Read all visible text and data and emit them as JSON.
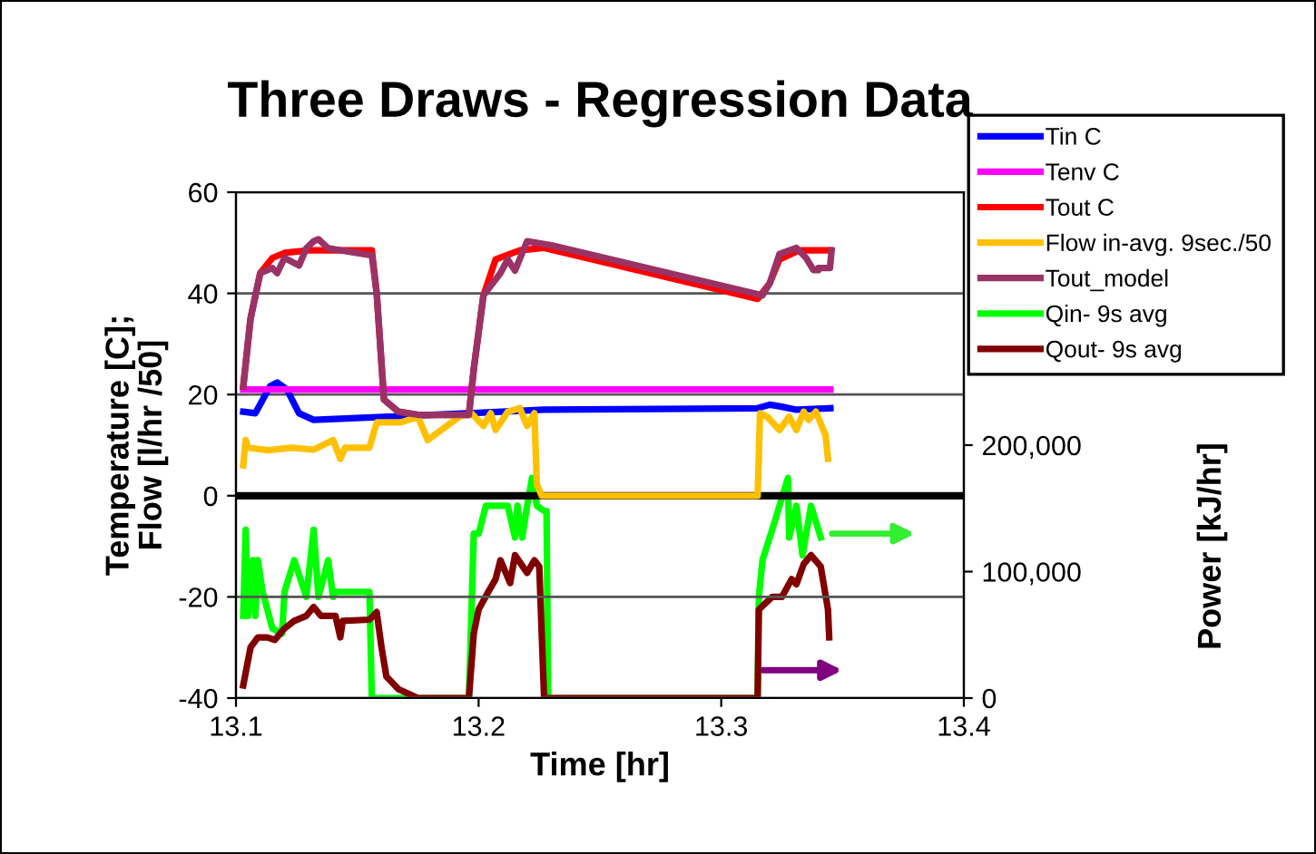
{
  "chart_data": {
    "type": "line",
    "title": "Three Draws - Regression Data",
    "xlabel": "Time [hr]",
    "ylabel": "Temperature [C];\nFlow [l/hr /50]",
    "y2label": "Power [kJ/hr]",
    "xlim": [
      13.1,
      13.4
    ],
    "xticks": [
      13.1,
      13.2,
      13.3,
      13.4
    ],
    "ylim": [
      -40,
      60
    ],
    "yticks": [
      -40,
      -20,
      0,
      20,
      40,
      60
    ],
    "y2lim": [
      0,
      400000
    ],
    "y2ticks": [
      0,
      {
        "value": 100000,
        "label": "100,000"
      },
      {
        "value": 200000,
        "label": "200,000"
      }
    ],
    "grid": "y",
    "legend": "top right",
    "marker": "none",
    "line_style": "solid",
    "ref_lines": [
      {
        "axis": "y",
        "value": 0,
        "color": "#000000"
      }
    ],
    "series": [
      {
        "name": "Tin C",
        "color": "#0000ff",
        "x": [
          13.103,
          13.108,
          13.114,
          13.117,
          13.121,
          13.126,
          13.132,
          13.196,
          13.227,
          13.315,
          13.32,
          13.325,
          13.331,
          13.345
        ],
        "values": [
          16.6,
          16.3,
          21.6,
          22.4,
          21,
          16.3,
          15,
          16.3,
          17,
          17.3,
          18,
          17.6,
          17,
          17.3
        ]
      },
      {
        "name": "Tenv C",
        "color": "#ff00ff",
        "x": [
          13.103,
          13.345
        ],
        "values": [
          21,
          21
        ]
      },
      {
        "name": "Tout C",
        "color": "#ff0000",
        "x": [
          13.103,
          13.106,
          13.11,
          13.115,
          13.12,
          13.13,
          13.156,
          13.158,
          13.161,
          13.167,
          13.175,
          13.196,
          13.198,
          13.202,
          13.207,
          13.217,
          13.227,
          13.315,
          13.32,
          13.324,
          13.332,
          13.345
        ],
        "values": [
          21.6,
          35,
          44,
          47,
          48,
          48.5,
          48.5,
          40,
          19,
          16.6,
          16,
          16,
          25,
          39.6,
          46.7,
          48.5,
          49,
          38.9,
          42,
          46.7,
          48.5,
          48.5
        ]
      },
      {
        "name": "Flow in-avg. 9sec./50",
        "color": "#ffc000",
        "x": [
          13.103,
          13.104,
          13.105,
          13.113,
          13.123,
          13.132,
          13.14,
          13.143,
          13.145,
          13.155,
          13.158,
          13.168,
          13.175,
          13.179,
          13.192,
          13.197,
          13.202,
          13.205,
          13.207,
          13.212,
          13.217,
          13.22,
          13.223,
          13.224,
          13.226,
          13.227,
          13.315,
          13.316,
          13.319,
          13.324,
          13.328,
          13.331,
          13.334,
          13.336,
          13.339,
          13.343,
          13.344
        ],
        "values": [
          6,
          11,
          9.5,
          9,
          9.5,
          9.1,
          11,
          7.3,
          9.5,
          9.5,
          14.5,
          14.5,
          15.6,
          11,
          15.6,
          16.3,
          13.8,
          16.3,
          13,
          16.6,
          17.3,
          13.8,
          16.3,
          2.3,
          0,
          0,
          0,
          16.3,
          15.6,
          13,
          15.6,
          13,
          16.6,
          15,
          16.6,
          12,
          7.3
        ]
      },
      {
        "name": "Tout_model",
        "color": "#993366",
        "x": [
          13.103,
          13.106,
          13.11,
          13.115,
          13.117,
          13.12,
          13.126,
          13.129,
          13.132,
          13.134,
          13.138,
          13.156,
          13.158,
          13.161,
          13.167,
          13.175,
          13.196,
          13.198,
          13.202,
          13.209,
          13.212,
          13.215,
          13.22,
          13.23,
          13.317,
          13.32,
          13.324,
          13.331,
          13.335,
          13.338,
          13.34,
          13.34,
          13.3448,
          13.3455
        ],
        "values": [
          21.6,
          35,
          44,
          45,
          44,
          47,
          45.5,
          48.9,
          50.3,
          50.7,
          48.9,
          47.5,
          40,
          19,
          16.6,
          16,
          16,
          25,
          39.6,
          44,
          46.7,
          44.5,
          50.3,
          49.5,
          39.6,
          42,
          47.8,
          49,
          47,
          44.6,
          44.6,
          45,
          45,
          48.5
        ]
      },
      {
        "name": "Qin- 9s avg",
        "color": "#00ff00",
        "axis": "y2",
        "x": [
          13.103,
          13.104,
          13.105,
          13.107,
          13.108,
          13.109,
          13.111,
          13.115,
          13.119,
          13.12,
          13.124,
          13.129,
          13.132,
          13.134,
          13.138,
          13.14,
          13.141,
          13.155,
          13.156,
          13.196,
          13.198,
          13.2,
          13.203,
          13.212,
          13.215,
          13.216,
          13.218,
          13.22,
          13.222,
          13.224,
          13.227,
          13.228,
          13.2287,
          13.315,
          13.3155,
          13.317,
          13.321,
          13.324,
          13.3275,
          13.328,
          13.331,
          13.3335,
          13.337,
          13.341
        ],
        "values": [
          65000,
          133000,
          65000,
          109000,
          65000,
          109000,
          84000,
          55000,
          51000,
          84000,
          109000,
          80000,
          133000,
          80000,
          109000,
          80000,
          84000,
          84000,
          0,
          0,
          130000,
          130000,
          152000,
          152000,
          127000,
          152000,
          127000,
          152000,
          174000,
          152000,
          148000,
          148000,
          0,
          0,
          80000,
          109000,
          133000,
          152000,
          174000,
          127000,
          152000,
          113000,
          152000,
          127000
        ]
      },
      {
        "name": "Qout- 9s avg",
        "color": "#800000",
        "axis": "y2",
        "x": [
          13.103,
          13.106,
          13.109,
          13.113,
          13.116,
          13.12,
          13.124,
          13.129,
          13.132,
          13.135,
          13.141,
          13.143,
          13.144,
          13.155,
          13.158,
          13.16,
          13.162,
          13.167,
          13.175,
          13.196,
          13.198,
          13.2,
          13.204,
          13.207,
          13.209,
          13.213,
          13.215,
          13.22,
          13.223,
          13.225,
          13.227,
          13.315,
          13.3155,
          13.321,
          13.325,
          13.329,
          13.331,
          13.334,
          13.337,
          13.341,
          13.344,
          13.3445
        ],
        "values": [
          10000,
          40000,
          48000,
          48000,
          46000,
          55000,
          61000,
          65000,
          72000,
          65000,
          65000,
          48000,
          61000,
          62000,
          68000,
          40000,
          17000,
          7000,
          0,
          0,
          51000,
          70000,
          84000,
          94000,
          109000,
          91000,
          113000,
          99000,
          109000,
          104000,
          0,
          0,
          70000,
          80000,
          80000,
          94000,
          90000,
          106000,
          113000,
          104000,
          70000,
          48000
        ]
      }
    ]
  }
}
